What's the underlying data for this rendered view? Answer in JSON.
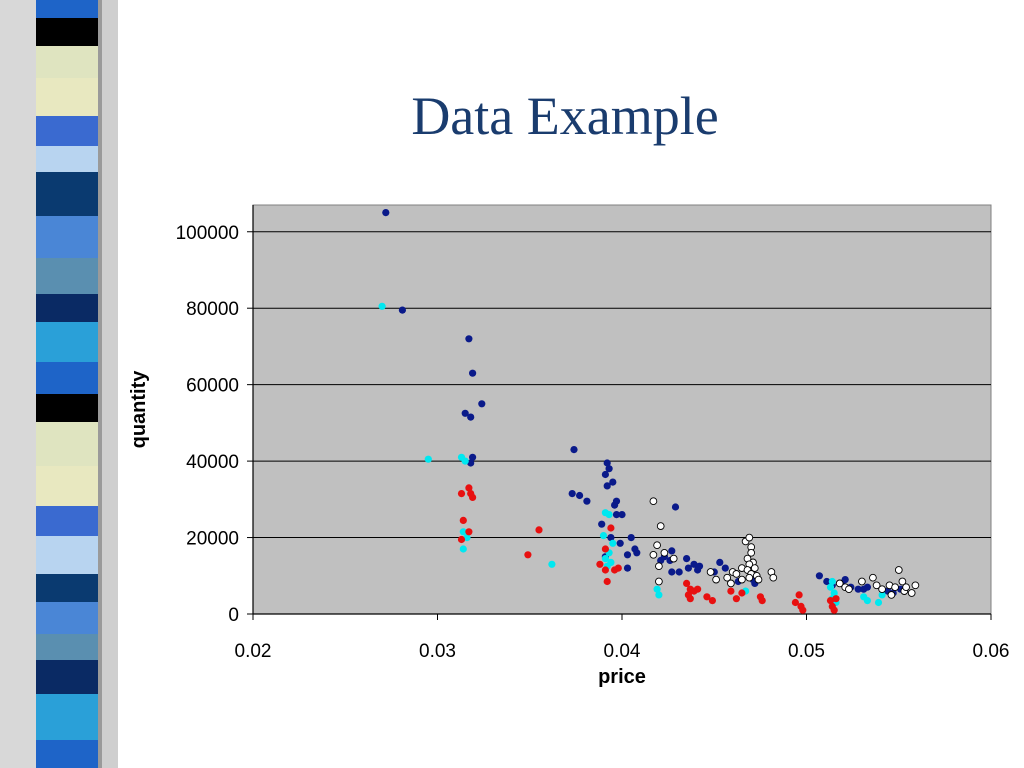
{
  "slide": {
    "title": "Data Example"
  },
  "colors": {
    "plot_bg": "#c0c0c0",
    "title": "#1a3c6e",
    "band_stripes": [
      "#1e64c8",
      "#0a2a64",
      "#4a86d6",
      "#b8d4f0",
      "#e8e8c0",
      "#000000",
      "#2aa0d8",
      "#5a8fb0",
      "#0a3a70",
      "#3a6ad0",
      "#dfe4c0"
    ],
    "series": {
      "navy": "#0a1a8a",
      "cyan": "#00e8f0",
      "red": "#e81010",
      "white": "#ffffff"
    }
  },
  "chart_data": {
    "type": "scatter",
    "xlabel": "price",
    "ylabel": "quantity",
    "xlim": [
      0.02,
      0.06
    ],
    "ylim": [
      0,
      107000
    ],
    "x_ticks": [
      "0.02",
      "0.03",
      "0.04",
      "0.05",
      "0.06"
    ],
    "y_ticks": [
      "0",
      "20000",
      "40000",
      "60000",
      "80000",
      "100000"
    ],
    "x_tick_values": [
      0.02,
      0.03,
      0.04,
      0.05,
      0.06
    ],
    "y_tick_values": [
      0,
      20000,
      40000,
      60000,
      80000,
      100000
    ],
    "grid": "horizontal",
    "series": [
      {
        "color": "navy",
        "points": [
          [
            0.0272,
            105000
          ],
          [
            0.0281,
            79500
          ],
          [
            0.0317,
            72000
          ],
          [
            0.0319,
            63000
          ],
          [
            0.0324,
            55000
          ],
          [
            0.0315,
            52500
          ],
          [
            0.0318,
            51500
          ],
          [
            0.0319,
            41000
          ],
          [
            0.0318,
            39500
          ],
          [
            0.0374,
            43000
          ],
          [
            0.0392,
            39500
          ],
          [
            0.0393,
            38000
          ],
          [
            0.0391,
            36500
          ],
          [
            0.0395,
            34500
          ],
          [
            0.0392,
            33500
          ],
          [
            0.0373,
            31500
          ],
          [
            0.0377,
            31000
          ],
          [
            0.0381,
            29500
          ],
          [
            0.0397,
            29500
          ],
          [
            0.0396,
            28500
          ],
          [
            0.0397,
            26000
          ],
          [
            0.04,
            26000
          ],
          [
            0.0389,
            23500
          ],
          [
            0.0394,
            20000
          ],
          [
            0.0399,
            18500
          ],
          [
            0.0405,
            20000
          ],
          [
            0.0407,
            17000
          ],
          [
            0.0403,
            15500
          ],
          [
            0.0408,
            16000
          ],
          [
            0.0391,
            15000
          ],
          [
            0.0403,
            12000
          ],
          [
            0.0421,
            14000
          ],
          [
            0.0426,
            14000
          ],
          [
            0.0423,
            15000
          ],
          [
            0.0427,
            16500
          ],
          [
            0.0429,
            28000
          ],
          [
            0.0427,
            11000
          ],
          [
            0.0431,
            11000
          ],
          [
            0.0435,
            14500
          ],
          [
            0.0436,
            12000
          ],
          [
            0.0439,
            13000
          ],
          [
            0.0441,
            11500
          ],
          [
            0.0442,
            12500
          ],
          [
            0.045,
            11000
          ],
          [
            0.0453,
            13500
          ],
          [
            0.0456,
            12000
          ],
          [
            0.0463,
            8500
          ],
          [
            0.0471,
            9000
          ],
          [
            0.0472,
            8000
          ],
          [
            0.0507,
            10000
          ],
          [
            0.0511,
            8500
          ],
          [
            0.0514,
            7500
          ],
          [
            0.0519,
            8000
          ],
          [
            0.0521,
            9000
          ],
          [
            0.0524,
            7000
          ],
          [
            0.0528,
            6500
          ],
          [
            0.0531,
            6500
          ],
          [
            0.0533,
            7000
          ],
          [
            0.0544,
            6000
          ],
          [
            0.0547,
            5500
          ],
          [
            0.0551,
            6500
          ]
        ]
      },
      {
        "color": "cyan",
        "points": [
          [
            0.027,
            80500
          ],
          [
            0.0295,
            40500
          ],
          [
            0.0313,
            41000
          ],
          [
            0.0315,
            40000
          ],
          [
            0.0314,
            21500
          ],
          [
            0.0316,
            20000
          ],
          [
            0.0314,
            17000
          ],
          [
            0.0362,
            13000
          ],
          [
            0.0391,
            26500
          ],
          [
            0.0393,
            26000
          ],
          [
            0.039,
            20500
          ],
          [
            0.0395,
            18500
          ],
          [
            0.0393,
            16000
          ],
          [
            0.0391,
            14500
          ],
          [
            0.0394,
            13500
          ],
          [
            0.0392,
            12500
          ],
          [
            0.0419,
            6500
          ],
          [
            0.042,
            5000
          ],
          [
            0.0467,
            6000
          ],
          [
            0.0514,
            8500
          ],
          [
            0.0513,
            7000
          ],
          [
            0.0515,
            5500
          ],
          [
            0.0514,
            4000
          ],
          [
            0.0516,
            3000
          ],
          [
            0.0531,
            4500
          ],
          [
            0.0533,
            3500
          ],
          [
            0.0539,
            3000
          ],
          [
            0.0541,
            5000
          ]
        ]
      },
      {
        "color": "red",
        "points": [
          [
            0.0317,
            33000
          ],
          [
            0.0313,
            31500
          ],
          [
            0.0318,
            31500
          ],
          [
            0.0319,
            30500
          ],
          [
            0.0314,
            24500
          ],
          [
            0.0317,
            21500
          ],
          [
            0.0313,
            19500
          ],
          [
            0.0349,
            15500
          ],
          [
            0.0355,
            22000
          ],
          [
            0.0394,
            22500
          ],
          [
            0.0391,
            17000
          ],
          [
            0.0388,
            13000
          ],
          [
            0.0391,
            11500
          ],
          [
            0.0396,
            11500
          ],
          [
            0.0398,
            12000
          ],
          [
            0.0392,
            8500
          ],
          [
            0.0435,
            8000
          ],
          [
            0.0437,
            6500
          ],
          [
            0.0436,
            5000
          ],
          [
            0.0439,
            6000
          ],
          [
            0.0441,
            6500
          ],
          [
            0.0437,
            4000
          ],
          [
            0.0446,
            4500
          ],
          [
            0.0449,
            3500
          ],
          [
            0.0459,
            6000
          ],
          [
            0.0462,
            4000
          ],
          [
            0.0465,
            5500
          ],
          [
            0.0475,
            4500
          ],
          [
            0.0476,
            3500
          ],
          [
            0.0494,
            3000
          ],
          [
            0.0496,
            5000
          ],
          [
            0.0497,
            2000
          ],
          [
            0.0498,
            1000
          ],
          [
            0.0513,
            3500
          ],
          [
            0.0514,
            2000
          ],
          [
            0.0515,
            1000
          ],
          [
            0.0516,
            4000
          ]
        ]
      },
      {
        "color": "white",
        "points": [
          [
            0.0417,
            29500
          ],
          [
            0.0421,
            23000
          ],
          [
            0.0419,
            18000
          ],
          [
            0.0417,
            15500
          ],
          [
            0.0423,
            16000
          ],
          [
            0.042,
            12500
          ],
          [
            0.0428,
            14500
          ],
          [
            0.042,
            8500
          ],
          [
            0.0448,
            11000
          ],
          [
            0.0451,
            9000
          ],
          [
            0.0457,
            9500
          ],
          [
            0.0459,
            8000
          ],
          [
            0.046,
            11000
          ],
          [
            0.0462,
            10500
          ],
          [
            0.0465,
            9000
          ],
          [
            0.0465,
            12000
          ],
          [
            0.0467,
            19000
          ],
          [
            0.0469,
            20000
          ],
          [
            0.047,
            17500
          ],
          [
            0.047,
            16000
          ],
          [
            0.0468,
            14500
          ],
          [
            0.0471,
            13500
          ],
          [
            0.0469,
            13000
          ],
          [
            0.0472,
            12000
          ],
          [
            0.0468,
            11500
          ],
          [
            0.047,
            10500
          ],
          [
            0.0473,
            10000
          ],
          [
            0.0469,
            9500
          ],
          [
            0.0474,
            9000
          ],
          [
            0.0481,
            11000
          ],
          [
            0.0482,
            9500
          ],
          [
            0.0518,
            8000
          ],
          [
            0.0521,
            7000
          ],
          [
            0.0523,
            6500
          ],
          [
            0.053,
            8500
          ],
          [
            0.0536,
            9500
          ],
          [
            0.0538,
            7500
          ],
          [
            0.0541,
            6500
          ],
          [
            0.0545,
            7500
          ],
          [
            0.0548,
            7000
          ],
          [
            0.055,
            11500
          ],
          [
            0.0552,
            8500
          ],
          [
            0.0553,
            6000
          ],
          [
            0.0554,
            7000
          ],
          [
            0.0557,
            5500
          ],
          [
            0.0559,
            7500
          ],
          [
            0.0546,
            5000
          ]
        ]
      }
    ]
  }
}
